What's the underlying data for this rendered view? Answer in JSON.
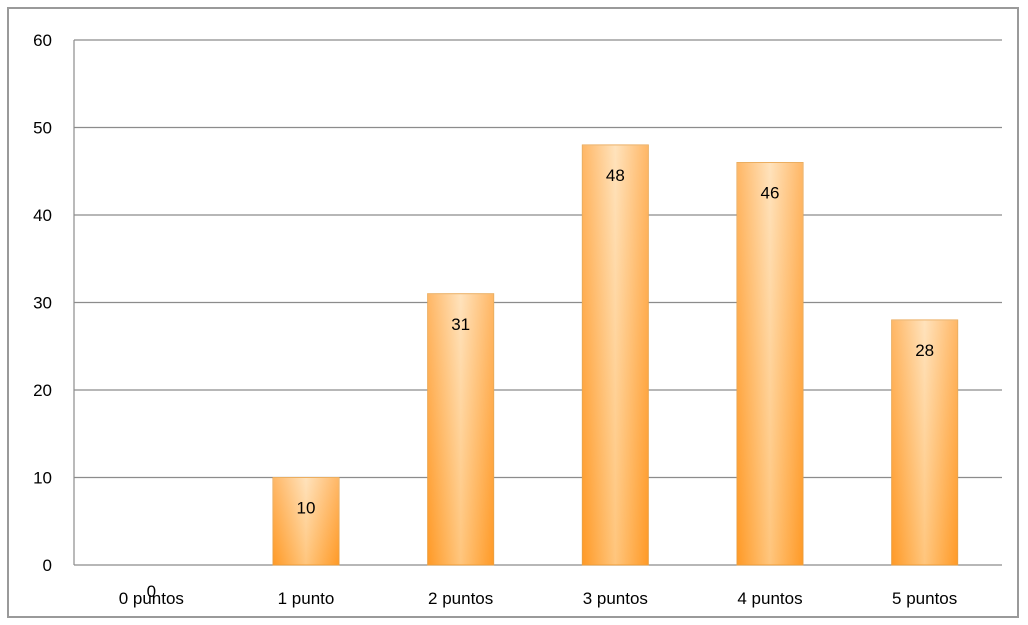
{
  "chart_data": {
    "type": "bar",
    "categories": [
      "0 puntos",
      "1 punto",
      "2 puntos",
      "3 puntos",
      "4 puntos",
      "5 puntos"
    ],
    "values": [
      0,
      10,
      31,
      48,
      46,
      28
    ],
    "data_labels": [
      "0",
      "10",
      "31",
      "48",
      "46",
      "28"
    ],
    "ylim": [
      0,
      60
    ],
    "yticks": [
      "0",
      "10",
      "20",
      "30",
      "40",
      "50",
      "60"
    ],
    "title": "",
    "xlabel": "",
    "ylabel": "",
    "grid": true,
    "legend": "none",
    "colors": {
      "bar_light": "#ffd9a6",
      "bar_mid": "#ffbe6b",
      "bar_dark": "#ff9f33",
      "bar_edge": "#e8a24a",
      "gridline": "#8c8c8c",
      "frame": "#9a9a9a"
    }
  }
}
